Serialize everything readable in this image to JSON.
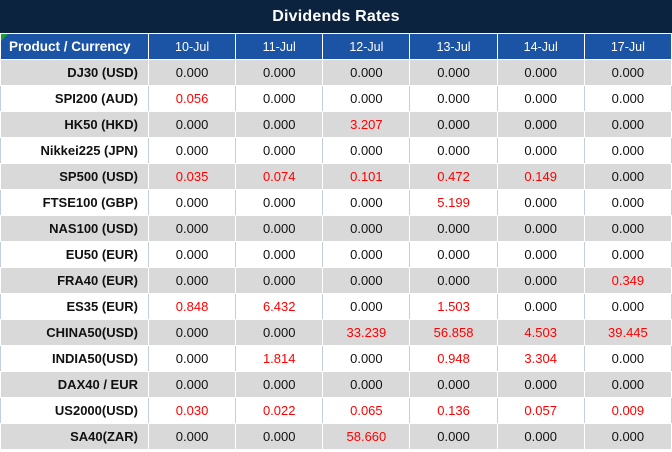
{
  "title": "Dividends Rates",
  "colors": {
    "navy": "#0c2340",
    "blue": "#1b53a5",
    "gray": "#d9d9d9",
    "red": "#ff0000",
    "green": "#1f9d2f",
    "lightline": "#c3cee0"
  },
  "table": {
    "product_header": "Product / Currency",
    "date_headers": [
      "10-Jul",
      "11-Jul",
      "12-Jul",
      "13-Jul",
      "14-Jul",
      "17-Jul"
    ],
    "zero_value": "0.000",
    "rows": [
      {
        "product": "DJ30 (USD)",
        "values": [
          "0.000",
          "0.000",
          "0.000",
          "0.000",
          "0.000",
          "0.000"
        ]
      },
      {
        "product": "SPI200 (AUD)",
        "values": [
          "0.056",
          "0.000",
          "0.000",
          "0.000",
          "0.000",
          "0.000"
        ]
      },
      {
        "product": "HK50 (HKD)",
        "values": [
          "0.000",
          "0.000",
          "3.207",
          "0.000",
          "0.000",
          "0.000"
        ]
      },
      {
        "product": "Nikkei225 (JPN)",
        "values": [
          "0.000",
          "0.000",
          "0.000",
          "0.000",
          "0.000",
          "0.000"
        ]
      },
      {
        "product": "SP500 (USD)",
        "values": [
          "0.035",
          "0.074",
          "0.101",
          "0.472",
          "0.149",
          "0.000"
        ]
      },
      {
        "product": "FTSE100 (GBP)",
        "values": [
          "0.000",
          "0.000",
          "0.000",
          "5.199",
          "0.000",
          "0.000"
        ]
      },
      {
        "product": "NAS100 (USD)",
        "values": [
          "0.000",
          "0.000",
          "0.000",
          "0.000",
          "0.000",
          "0.000"
        ]
      },
      {
        "product": "EU50 (EUR)",
        "values": [
          "0.000",
          "0.000",
          "0.000",
          "0.000",
          "0.000",
          "0.000"
        ]
      },
      {
        "product": "FRA40 (EUR)",
        "values": [
          "0.000",
          "0.000",
          "0.000",
          "0.000",
          "0.000",
          "0.349"
        ]
      },
      {
        "product": "ES35 (EUR)",
        "values": [
          "0.848",
          "6.432",
          "0.000",
          "1.503",
          "0.000",
          "0.000"
        ]
      },
      {
        "product": "CHINA50(USD)",
        "values": [
          "0.000",
          "0.000",
          "33.239",
          "56.858",
          "4.503",
          "39.445"
        ]
      },
      {
        "product": "INDIA50(USD)",
        "values": [
          "0.000",
          "1.814",
          "0.000",
          "0.948",
          "3.304",
          "0.000"
        ]
      },
      {
        "product": "DAX40 / EUR",
        "values": [
          "0.000",
          "0.000",
          "0.000",
          "0.000",
          "0.000",
          "0.000"
        ]
      },
      {
        "product": "US2000(USD)",
        "values": [
          "0.030",
          "0.022",
          "0.065",
          "0.136",
          "0.057",
          "0.009"
        ]
      },
      {
        "product": "SA40(ZAR)",
        "values": [
          "0.000",
          "0.000",
          "58.660",
          "0.000",
          "0.000",
          "0.000"
        ]
      }
    ]
  }
}
